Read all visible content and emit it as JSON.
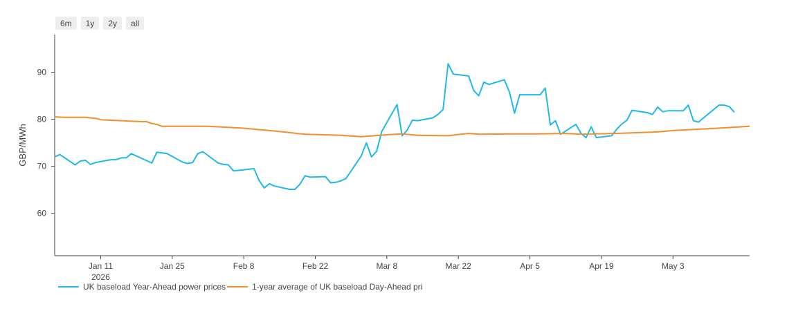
{
  "range_buttons": [
    "6m",
    "1y",
    "2y",
    "all"
  ],
  "chart_data": {
    "type": "line",
    "ylabel": "GBP/MWh",
    "xlabel": "",
    "x_range": [
      "2026-01-02",
      "2026-05-18"
    ],
    "ylim": [
      51,
      98
    ],
    "y_ticks": [
      60,
      70,
      80,
      90
    ],
    "x_ticks": [
      {
        "date": "2026-01-11",
        "label": "Jan 11",
        "sublabel": "2026"
      },
      {
        "date": "2026-01-25",
        "label": "Jan 25",
        "sublabel": ""
      },
      {
        "date": "2026-02-08",
        "label": "Feb 8",
        "sublabel": ""
      },
      {
        "date": "2026-02-22",
        "label": "Feb 22",
        "sublabel": ""
      },
      {
        "date": "2026-03-08",
        "label": "Mar 8",
        "sublabel": ""
      },
      {
        "date": "2026-03-22",
        "label": "Mar 22",
        "sublabel": ""
      },
      {
        "date": "2026-04-05",
        "label": "Apr 5",
        "sublabel": ""
      },
      {
        "date": "2026-04-19",
        "label": "Apr 19",
        "sublabel": ""
      },
      {
        "date": "2026-05-03",
        "label": "May 3",
        "sublabel": ""
      }
    ],
    "grid": false,
    "series": [
      {
        "name": "UK baseload Year-Ahead power prices",
        "color": "#1fb8eb",
        "points": [
          [
            "2026-01-02",
            72.0
          ],
          [
            "2026-01-03",
            72.5
          ],
          [
            "2026-01-06",
            70.3
          ],
          [
            "2026-01-07",
            71.1
          ],
          [
            "2026-01-08",
            71.3
          ],
          [
            "2026-01-09",
            70.4
          ],
          [
            "2026-01-10",
            70.8
          ],
          [
            "2026-01-13",
            71.4
          ],
          [
            "2026-01-14",
            71.4
          ],
          [
            "2026-01-15",
            71.8
          ],
          [
            "2026-01-16",
            71.8
          ],
          [
            "2026-01-17",
            72.7
          ],
          [
            "2026-01-21",
            70.7
          ],
          [
            "2026-01-22",
            73.0
          ],
          [
            "2026-01-24",
            72.7
          ],
          [
            "2026-01-27",
            70.9
          ],
          [
            "2026-01-28",
            70.6
          ],
          [
            "2026-01-29",
            70.8
          ],
          [
            "2026-01-30",
            72.7
          ],
          [
            "2026-01-31",
            73.1
          ],
          [
            "2026-02-03",
            70.7
          ],
          [
            "2026-02-04",
            70.4
          ],
          [
            "2026-02-05",
            70.3
          ],
          [
            "2026-02-06",
            69.0
          ],
          [
            "2026-02-10",
            69.5
          ],
          [
            "2026-02-11",
            67.0
          ],
          [
            "2026-02-12",
            65.4
          ],
          [
            "2026-02-13",
            66.3
          ],
          [
            "2026-02-14",
            65.8
          ],
          [
            "2026-02-17",
            65.1
          ],
          [
            "2026-02-18",
            65.1
          ],
          [
            "2026-02-19",
            66.2
          ],
          [
            "2026-02-20",
            68.0
          ],
          [
            "2026-02-21",
            67.7
          ],
          [
            "2026-02-24",
            67.8
          ],
          [
            "2026-02-25",
            66.5
          ],
          [
            "2026-02-26",
            66.6
          ],
          [
            "2026-02-27",
            66.9
          ],
          [
            "2026-02-28",
            67.4
          ],
          [
            "2026-03-03",
            72.2
          ],
          [
            "2026-03-04",
            75.0
          ],
          [
            "2026-03-05",
            72.0
          ],
          [
            "2026-03-06",
            73.2
          ],
          [
            "2026-03-07",
            77.4
          ],
          [
            "2026-03-10",
            83.1
          ],
          [
            "2026-03-11",
            76.5
          ],
          [
            "2026-03-12",
            77.7
          ],
          [
            "2026-03-13",
            79.8
          ],
          [
            "2026-03-14",
            79.7
          ],
          [
            "2026-03-17",
            80.3
          ],
          [
            "2026-03-18",
            81.0
          ],
          [
            "2026-03-19",
            82.1
          ],
          [
            "2026-03-20",
            91.8
          ],
          [
            "2026-03-21",
            89.6
          ],
          [
            "2026-03-24",
            89.2
          ],
          [
            "2026-03-25",
            86.1
          ],
          [
            "2026-03-26",
            85.0
          ],
          [
            "2026-03-27",
            87.9
          ],
          [
            "2026-03-28",
            87.4
          ],
          [
            "2026-03-31",
            88.4
          ],
          [
            "2026-04-01",
            85.8
          ],
          [
            "2026-04-02",
            81.3
          ],
          [
            "2026-04-03",
            85.2
          ],
          [
            "2026-04-07",
            85.2
          ],
          [
            "2026-04-08",
            86.6
          ],
          [
            "2026-04-09",
            78.8
          ],
          [
            "2026-04-10",
            79.7
          ],
          [
            "2026-04-11",
            76.8
          ],
          [
            "2026-04-14",
            78.9
          ],
          [
            "2026-04-15",
            77.0
          ],
          [
            "2026-04-16",
            76.1
          ],
          [
            "2026-04-17",
            78.4
          ],
          [
            "2026-04-18",
            76.1
          ],
          [
            "2026-04-21",
            76.5
          ],
          [
            "2026-04-22",
            77.9
          ],
          [
            "2026-04-23",
            79.0
          ],
          [
            "2026-04-24",
            79.8
          ],
          [
            "2026-04-25",
            81.9
          ],
          [
            "2026-04-28",
            81.4
          ],
          [
            "2026-04-29",
            81.0
          ],
          [
            "2026-04-30",
            82.6
          ],
          [
            "2026-05-01",
            81.6
          ],
          [
            "2026-05-02",
            81.8
          ],
          [
            "2026-05-05",
            81.8
          ],
          [
            "2026-05-06",
            83.0
          ],
          [
            "2026-05-07",
            79.7
          ],
          [
            "2026-05-08",
            79.4
          ],
          [
            "2026-05-12",
            83.0
          ],
          [
            "2026-05-13",
            83.0
          ],
          [
            "2026-05-14",
            82.7
          ],
          [
            "2026-05-15",
            81.5
          ]
        ]
      },
      {
        "name": "1-year average of UK baseload Day-Ahead pri",
        "color": "#f28e2b",
        "points": [
          [
            "2026-01-02",
            80.5
          ],
          [
            "2026-01-04",
            80.4
          ],
          [
            "2026-01-08",
            80.4
          ],
          [
            "2026-01-10",
            80.2
          ],
          [
            "2026-01-11",
            79.9
          ],
          [
            "2026-01-15",
            79.7
          ],
          [
            "2026-01-19",
            79.5
          ],
          [
            "2026-01-20",
            79.5
          ],
          [
            "2026-01-21",
            79.1
          ],
          [
            "2026-01-22",
            78.9
          ],
          [
            "2026-01-23",
            78.5
          ],
          [
            "2026-01-26",
            78.5
          ],
          [
            "2026-02-01",
            78.5
          ],
          [
            "2026-02-08",
            78.1
          ],
          [
            "2026-02-15",
            77.4
          ],
          [
            "2026-02-20",
            76.8
          ],
          [
            "2026-02-27",
            76.6
          ],
          [
            "2026-03-03",
            76.3
          ],
          [
            "2026-03-08",
            76.7
          ],
          [
            "2026-03-11",
            76.9
          ],
          [
            "2026-03-14",
            76.6
          ],
          [
            "2026-03-20",
            76.5
          ],
          [
            "2026-03-24",
            77.0
          ],
          [
            "2026-03-26",
            76.8
          ],
          [
            "2026-04-02",
            76.9
          ],
          [
            "2026-04-06",
            76.9
          ],
          [
            "2026-04-12",
            77.0
          ],
          [
            "2026-04-15",
            76.8
          ],
          [
            "2026-04-22",
            77.0
          ],
          [
            "2026-04-30",
            77.3
          ],
          [
            "2026-05-03",
            77.6
          ],
          [
            "2026-05-10",
            78.0
          ],
          [
            "2026-05-18",
            78.5
          ]
        ]
      }
    ]
  }
}
